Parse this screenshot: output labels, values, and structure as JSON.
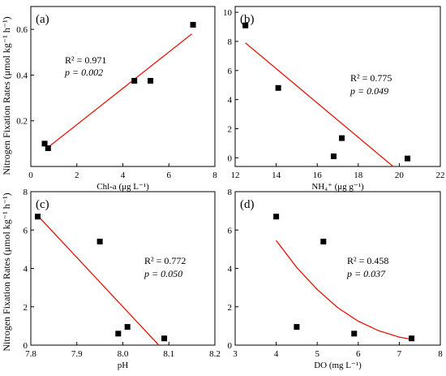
{
  "ylabel": "Nitrogen Fixation Rates (μmol kg⁻¹ h⁻¹)",
  "chart_data": [
    {
      "type": "scatter",
      "panel": "(a)",
      "xlabel": "Chl-a (μg L⁻¹)",
      "xlim": [
        0,
        8
      ],
      "xticks": [
        0,
        2,
        4,
        6,
        8
      ],
      "ylim": [
        0,
        0.7
      ],
      "yticks": [
        0.2,
        0.4,
        0.6
      ],
      "points": [
        [
          0.6,
          0.1
        ],
        [
          0.75,
          0.08
        ],
        [
          4.5,
          0.375
        ],
        [
          5.2,
          0.375
        ],
        [
          7.05,
          0.62
        ]
      ],
      "fit": {
        "kind": "linear",
        "x": [
          0.7,
          7.0
        ],
        "y": [
          0.08,
          0.58
        ]
      },
      "r2": "R² = 0.971",
      "p": "p = 0.002"
    },
    {
      "type": "scatter",
      "panel": "(b)",
      "xlabel": "NH₄⁺ (μg g⁻¹)",
      "xlim": [
        12,
        22
      ],
      "xticks": [
        12,
        14,
        16,
        18,
        20,
        22
      ],
      "ylim": [
        -0.6,
        10.4
      ],
      "yticks": [
        0,
        2,
        4,
        6,
        8,
        10
      ],
      "points": [
        [
          12.5,
          9.1
        ],
        [
          14.1,
          4.8
        ],
        [
          16.8,
          0.1
        ],
        [
          17.2,
          1.35
        ],
        [
          20.4,
          -0.05
        ]
      ],
      "fit": {
        "kind": "linear",
        "x": [
          12.5,
          19.7
        ],
        "y": [
          7.9,
          -0.6
        ]
      },
      "r2": "R² = 0.775",
      "p": "p = 0.049"
    },
    {
      "type": "scatter",
      "panel": "(c)",
      "xlabel": "pH",
      "xlim": [
        7.8,
        8.2
      ],
      "xticks": [
        7.8,
        7.9,
        8.0,
        8.1,
        8.2
      ],
      "ylim": [
        0,
        8
      ],
      "yticks": [
        0,
        2,
        4,
        6,
        8
      ],
      "points": [
        [
          7.815,
          6.7
        ],
        [
          7.95,
          5.4
        ],
        [
          7.99,
          0.6
        ],
        [
          8.01,
          0.95
        ],
        [
          8.09,
          0.35
        ]
      ],
      "fit": {
        "kind": "linear",
        "x": [
          7.815,
          8.078
        ],
        "y": [
          6.75,
          0.0
        ]
      },
      "r2": "R² = 0.772",
      "p": "p = 0.050"
    },
    {
      "type": "scatter",
      "panel": "(d)",
      "xlabel": "DO (mg L⁻¹)",
      "xlim": [
        3,
        8
      ],
      "xticks": [
        3,
        4,
        5,
        6,
        7,
        8
      ],
      "ylim": [
        0,
        8
      ],
      "yticks": [
        0,
        2,
        4,
        6,
        8
      ],
      "points": [
        [
          4.0,
          6.7
        ],
        [
          4.5,
          0.95
        ],
        [
          5.15,
          5.4
        ],
        [
          5.9,
          0.6
        ],
        [
          7.3,
          0.35
        ]
      ],
      "fit": {
        "kind": "curve",
        "x": [
          4.0,
          4.5,
          5.0,
          5.5,
          6.0,
          6.5,
          7.0,
          7.3
        ],
        "y": [
          5.45,
          4.05,
          2.9,
          1.95,
          1.25,
          0.75,
          0.42,
          0.3
        ]
      },
      "r2": "R² = 0.458",
      "p": "p = 0.037"
    }
  ]
}
